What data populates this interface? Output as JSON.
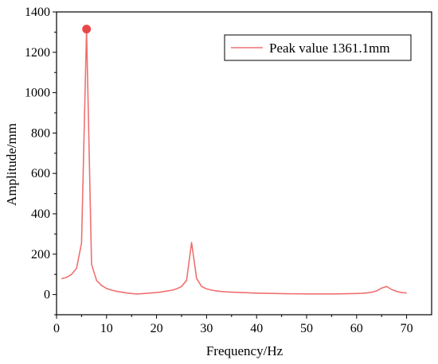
{
  "chart_data": {
    "type": "line",
    "xlabel": "Frequency/Hz",
    "ylabel": "Amplitude/mm",
    "xlim": [
      0,
      75
    ],
    "ylim": [
      -100,
      1400
    ],
    "x_ticks": [
      0,
      10,
      20,
      30,
      40,
      50,
      60,
      70
    ],
    "y_ticks": [
      0,
      200,
      400,
      600,
      800,
      1000,
      1200,
      1400
    ],
    "grid": false,
    "legend_position": "top-right",
    "series": [
      {
        "name": "Peak value 1361.1mm",
        "color": "#f07070",
        "x": [
          1,
          2,
          3,
          4,
          5,
          6,
          7,
          8,
          9,
          10,
          11,
          12,
          13,
          14,
          15,
          16,
          17,
          18,
          19,
          20,
          21,
          22,
          23,
          24,
          25,
          26,
          27,
          28,
          29,
          30,
          31,
          32,
          33,
          34,
          35,
          36,
          37,
          38,
          39,
          40,
          41,
          42,
          43,
          44,
          45,
          46,
          47,
          48,
          49,
          50,
          51,
          52,
          53,
          54,
          55,
          56,
          57,
          58,
          59,
          60,
          61,
          62,
          63,
          64,
          65,
          66,
          67,
          68,
          69,
          70
        ],
        "y": [
          78,
          85,
          100,
          130,
          255,
          1315,
          150,
          70,
          45,
          30,
          22,
          16,
          12,
          8,
          5,
          3,
          4,
          6,
          8,
          10,
          13,
          17,
          21,
          28,
          40,
          70,
          258,
          80,
          40,
          28,
          22,
          18,
          15,
          13,
          12,
          11,
          10,
          9,
          8,
          7,
          6.5,
          6,
          5.5,
          5,
          4.5,
          4,
          3.8,
          3.5,
          3.3,
          3,
          3,
          3,
          3,
          3,
          3,
          3,
          3.5,
          4,
          4.5,
          5,
          6,
          8,
          11,
          18,
          32,
          40,
          25,
          15,
          10,
          8
        ]
      }
    ],
    "peak_marker": {
      "x": 6,
      "y": 1315,
      "color": "#e8484a"
    }
  }
}
